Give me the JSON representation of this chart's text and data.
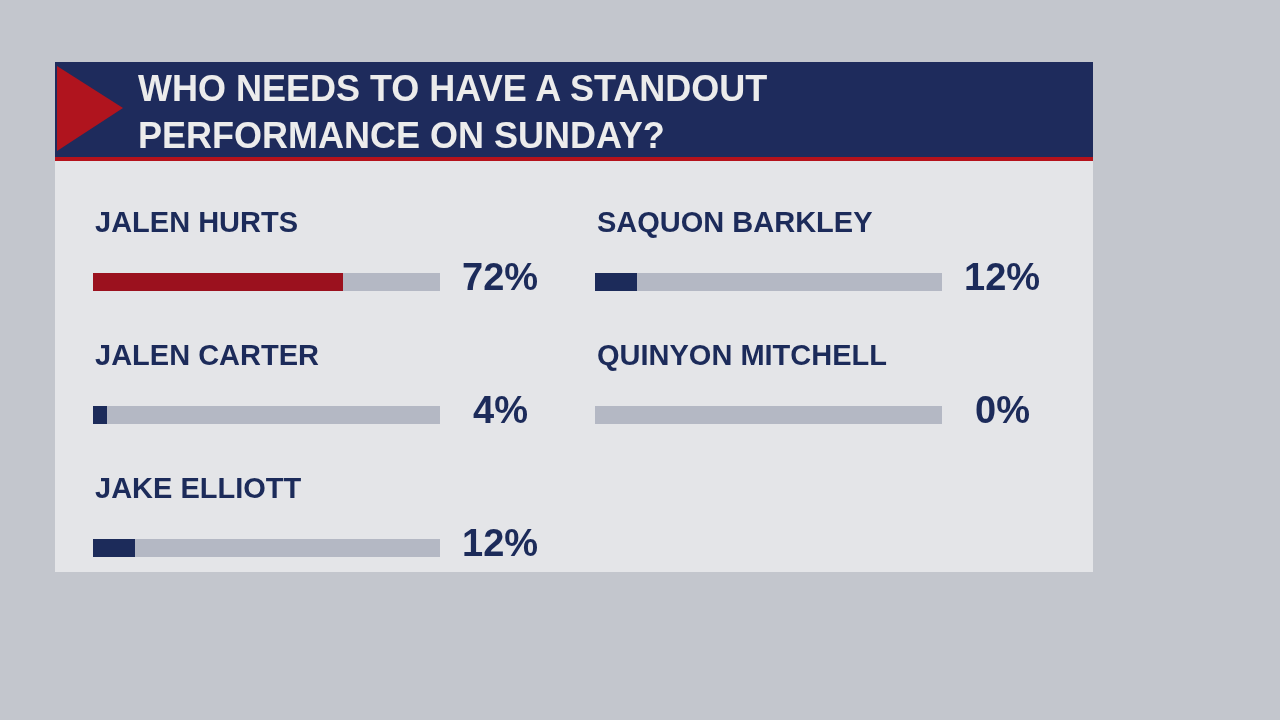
{
  "chart_data": [
    {
      "type": "bar",
      "orientation": "horizontal",
      "stacked": true,
      "title": "WHO NEEDS TO HAVE A STANDOUT PERFORMANCE ON SUNDAY?",
      "categories": [
        "JALEN HURTS",
        "JALEN CARTER",
        "JAKE ELLIOTT"
      ],
      "series": [
        {
          "values": [
            72,
            4,
            12
          ],
          "colors": [
            "#9b111e",
            "#1c2b5a",
            "#1c2b5a"
          ],
          "value_labels": [
            "72%",
            "4%",
            "12%"
          ]
        },
        {
          "values": [
            28,
            96,
            88
          ],
          "color": "#b4b8c4"
        }
      ],
      "xlim": [
        0,
        100
      ],
      "tick_labels": "y"
    },
    {
      "type": "bar",
      "orientation": "horizontal",
      "stacked": true,
      "categories": [
        "SAQUON BARKLEY",
        "QUINYON MITCHELL"
      ],
      "series": [
        {
          "values": [
            12,
            0
          ],
          "colors": [
            "#1c2b5a",
            "#1c2b5a"
          ],
          "value_labels": [
            "12%",
            "0%"
          ]
        },
        {
          "values": [
            88,
            100
          ],
          "color": "#b4b8c4"
        }
      ],
      "xlim": [
        0,
        100
      ],
      "tick_labels": "y"
    }
  ]
}
